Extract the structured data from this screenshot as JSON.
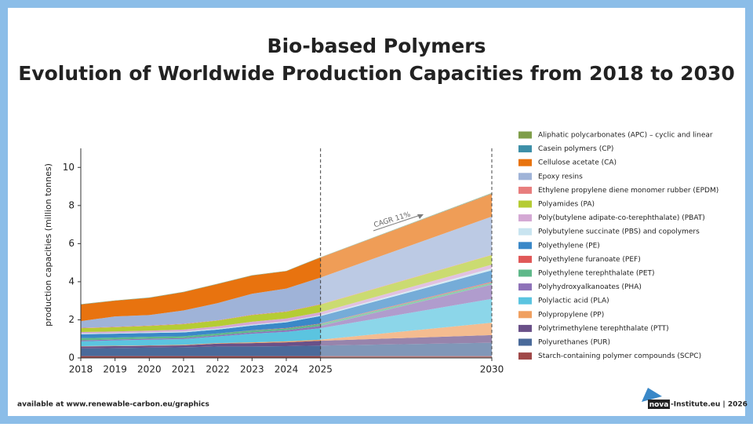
{
  "chart_data": {
    "type": "stacked_area",
    "title": "Bio-based Polymers",
    "subtitle": "Evolution of Worldwide Production Capacities from 2018 to 2030",
    "y_label": "production capacities (million tonnes)",
    "annotation": "CAGR 11%",
    "source": "available at www.renewable-carbon.eu/graphics",
    "logo_text": "nova",
    "credit": "-Institute.eu | 2026",
    "x": [
      2018,
      2019,
      2020,
      2021,
      2022,
      2023,
      2024,
      2025,
      2030
    ],
    "xlim": [
      2018,
      2030
    ],
    "xticks": [
      2018,
      2019,
      2020,
      2021,
      2022,
      2023,
      2024,
      2025,
      2030
    ],
    "ylim": [
      0,
      11
    ],
    "yticks": [
      0,
      2,
      4,
      6,
      8,
      10
    ],
    "vlines": [
      2025,
      2030
    ],
    "series": [
      {
        "name": "Starch-containing polymer compounds (SCPC)",
        "color": "#a04848",
        "values": [
          0.1,
          0.1,
          0.1,
          0.1,
          0.1,
          0.1,
          0.1,
          0.1,
          0.1
        ]
      },
      {
        "name": "Polyurethanes (PUR)",
        "color": "#4a6a9a",
        "values": [
          0.4,
          0.42,
          0.44,
          0.46,
          0.5,
          0.5,
          0.52,
          0.55,
          0.7
        ]
      },
      {
        "name": "Polytrimethylene terephthalate (PTT)",
        "color": "#6a5088",
        "values": [
          0.1,
          0.1,
          0.1,
          0.1,
          0.15,
          0.18,
          0.2,
          0.25,
          0.4
        ]
      },
      {
        "name": "Polypropylene (PP)",
        "color": "#f0a060",
        "values": [
          0.02,
          0.02,
          0.02,
          0.03,
          0.03,
          0.04,
          0.05,
          0.06,
          0.65
        ]
      },
      {
        "name": "Polylactic acid (PLA)",
        "color": "#5bc4e0",
        "values": [
          0.25,
          0.28,
          0.3,
          0.3,
          0.35,
          0.45,
          0.5,
          0.6,
          1.25
        ]
      },
      {
        "name": "Polyhydroxyalkanoates (PHA)",
        "color": "#8e72b8",
        "values": [
          0.05,
          0.05,
          0.05,
          0.05,
          0.06,
          0.07,
          0.08,
          0.12,
          0.75
        ]
      },
      {
        "name": "Polyethylene terephthalate (PET)",
        "color": "#5fb88a",
        "values": [
          0.12,
          0.1,
          0.1,
          0.1,
          0.1,
          0.1,
          0.1,
          0.1,
          0.1
        ]
      },
      {
        "name": "Polyethylene furanoate (PEF)",
        "color": "#e05858",
        "values": [
          0,
          0,
          0,
          0,
          0,
          0.01,
          0.02,
          0.02,
          0.05
        ]
      },
      {
        "name": "Polyethylene (PE)",
        "color": "#3a88c8",
        "values": [
          0.2,
          0.2,
          0.2,
          0.2,
          0.2,
          0.25,
          0.3,
          0.4,
          0.6
        ]
      },
      {
        "name": "Polybutylene succinate (PBS) and copolymers",
        "color": "#c8e4f0",
        "values": [
          0.04,
          0.04,
          0.04,
          0.05,
          0.05,
          0.05,
          0.05,
          0.05,
          0.1
        ]
      },
      {
        "name": "Poly(butylene adipate-co-terephthalate) (PBAT)",
        "color": "#d4a8d4",
        "values": [
          0.08,
          0.08,
          0.08,
          0.1,
          0.12,
          0.15,
          0.15,
          0.15,
          0.2
        ]
      },
      {
        "name": "Polyamides (PA)",
        "color": "#b5cc34",
        "values": [
          0.2,
          0.22,
          0.25,
          0.28,
          0.3,
          0.35,
          0.35,
          0.4,
          0.5
        ]
      },
      {
        "name": "Ethylene propylene diene monomer rubber (EPDM)",
        "color": "#e87d7d",
        "values": [
          0.02,
          0.02,
          0.02,
          0.02,
          0.02,
          0.02,
          0.02,
          0.02,
          0.02
        ]
      },
      {
        "name": "Epoxy resins",
        "color": "#9fb3d8",
        "values": [
          0.35,
          0.55,
          0.55,
          0.7,
          0.9,
          1.1,
          1.2,
          1.4,
          2.0
        ]
      },
      {
        "name": "Cellulose acetate (CA)",
        "color": "#e8730f",
        "values": [
          0.87,
          0.82,
          0.9,
          0.96,
          1.0,
          0.95,
          0.91,
          1.05,
          1.2
        ]
      },
      {
        "name": "Casein polymers (CP)",
        "color": "#3d8fa8",
        "values": [
          0.01,
          0.01,
          0.01,
          0.01,
          0.01,
          0.01,
          0.01,
          0.01,
          0.02
        ]
      },
      {
        "name": "Aliphatic polycarbonates (APC) – cyclic and linear",
        "color": "#7f9e4a",
        "values": [
          0.01,
          0.01,
          0.01,
          0.01,
          0.01,
          0.01,
          0.01,
          0.01,
          0.02
        ]
      }
    ]
  }
}
